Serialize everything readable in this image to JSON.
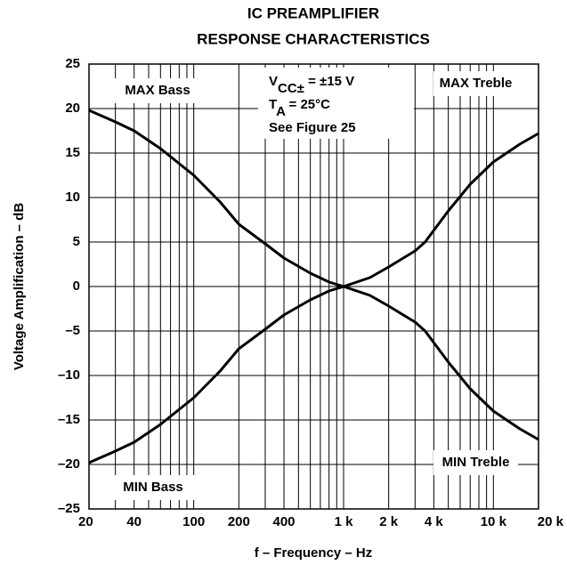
{
  "chart_data": {
    "type": "line",
    "title": [
      "IC PREAMPLIFIER",
      "RESPONSE CHARACTERISTICS"
    ],
    "xlabel": "f – Frequency – Hz",
    "ylabel": "Voltage Amplification – dB",
    "xscale": "log",
    "xlim": [
      20,
      20000
    ],
    "ylim": [
      -25,
      25
    ],
    "xticks": [
      20,
      40,
      100,
      200,
      400,
      {
        "value": 1000,
        "label": "1 k"
      },
      {
        "value": 2000,
        "label": "2 k"
      },
      {
        "value": 4000,
        "label": "4 k"
      },
      {
        "value": 10000,
        "label": "10 k"
      },
      {
        "value": 20000,
        "label": "20 k"
      }
    ],
    "x_minor_grid": [
      30,
      50,
      60,
      70,
      80,
      90,
      300,
      500,
      600,
      700,
      800,
      900,
      3000,
      5000,
      6000,
      7000,
      8000,
      9000
    ],
    "yticks": [
      {
        "value": -25,
        "label": "–25"
      },
      {
        "value": -20,
        "label": "–20"
      },
      {
        "value": -15,
        "label": "–15"
      },
      {
        "value": -10,
        "label": "–10"
      },
      {
        "value": -5,
        "label": "–5"
      },
      0,
      5,
      10,
      15,
      20,
      25
    ],
    "grid": true,
    "annotation": [
      [
        "V",
        "CC±",
        " = ±15 V"
      ],
      [
        "T",
        "A",
        " =  25°C"
      ],
      [
        "See Figure 25"
      ]
    ],
    "series": [
      {
        "name": "MAX Bass",
        "color": "#000000",
        "x": [
          20,
          30,
          40,
          60,
          100,
          150,
          200,
          300,
          400,
          600,
          800,
          1000
        ],
        "values": [
          19.8,
          18.5,
          17.5,
          15.5,
          12.5,
          9.5,
          7,
          4.8,
          3.2,
          1.5,
          0.5,
          0
        ]
      },
      {
        "name": "MAX Treble",
        "color": "#000000",
        "x": [
          1000,
          1500,
          2000,
          3000,
          3500,
          5000,
          7000,
          10000,
          15000,
          20000
        ],
        "values": [
          0,
          1,
          2.2,
          4,
          5,
          8.5,
          11.5,
          14,
          16,
          17.2
        ]
      },
      {
        "name": "MIN Bass",
        "color": "#000000",
        "x": [
          20,
          30,
          40,
          60,
          100,
          150,
          200,
          300,
          400,
          600,
          800,
          1000
        ],
        "values": [
          -19.8,
          -18.5,
          -17.5,
          -15.5,
          -12.5,
          -9.5,
          -7,
          -4.8,
          -3.2,
          -1.5,
          -0.5,
          0
        ]
      },
      {
        "name": "MIN Treble",
        "color": "#000000",
        "x": [
          1000,
          1500,
          2000,
          3000,
          3500,
          5000,
          7000,
          10000,
          15000,
          20000
        ],
        "values": [
          0,
          -1,
          -2.2,
          -4,
          -5,
          -8.5,
          -11.5,
          -14,
          -16,
          -17.2
        ]
      }
    ]
  }
}
